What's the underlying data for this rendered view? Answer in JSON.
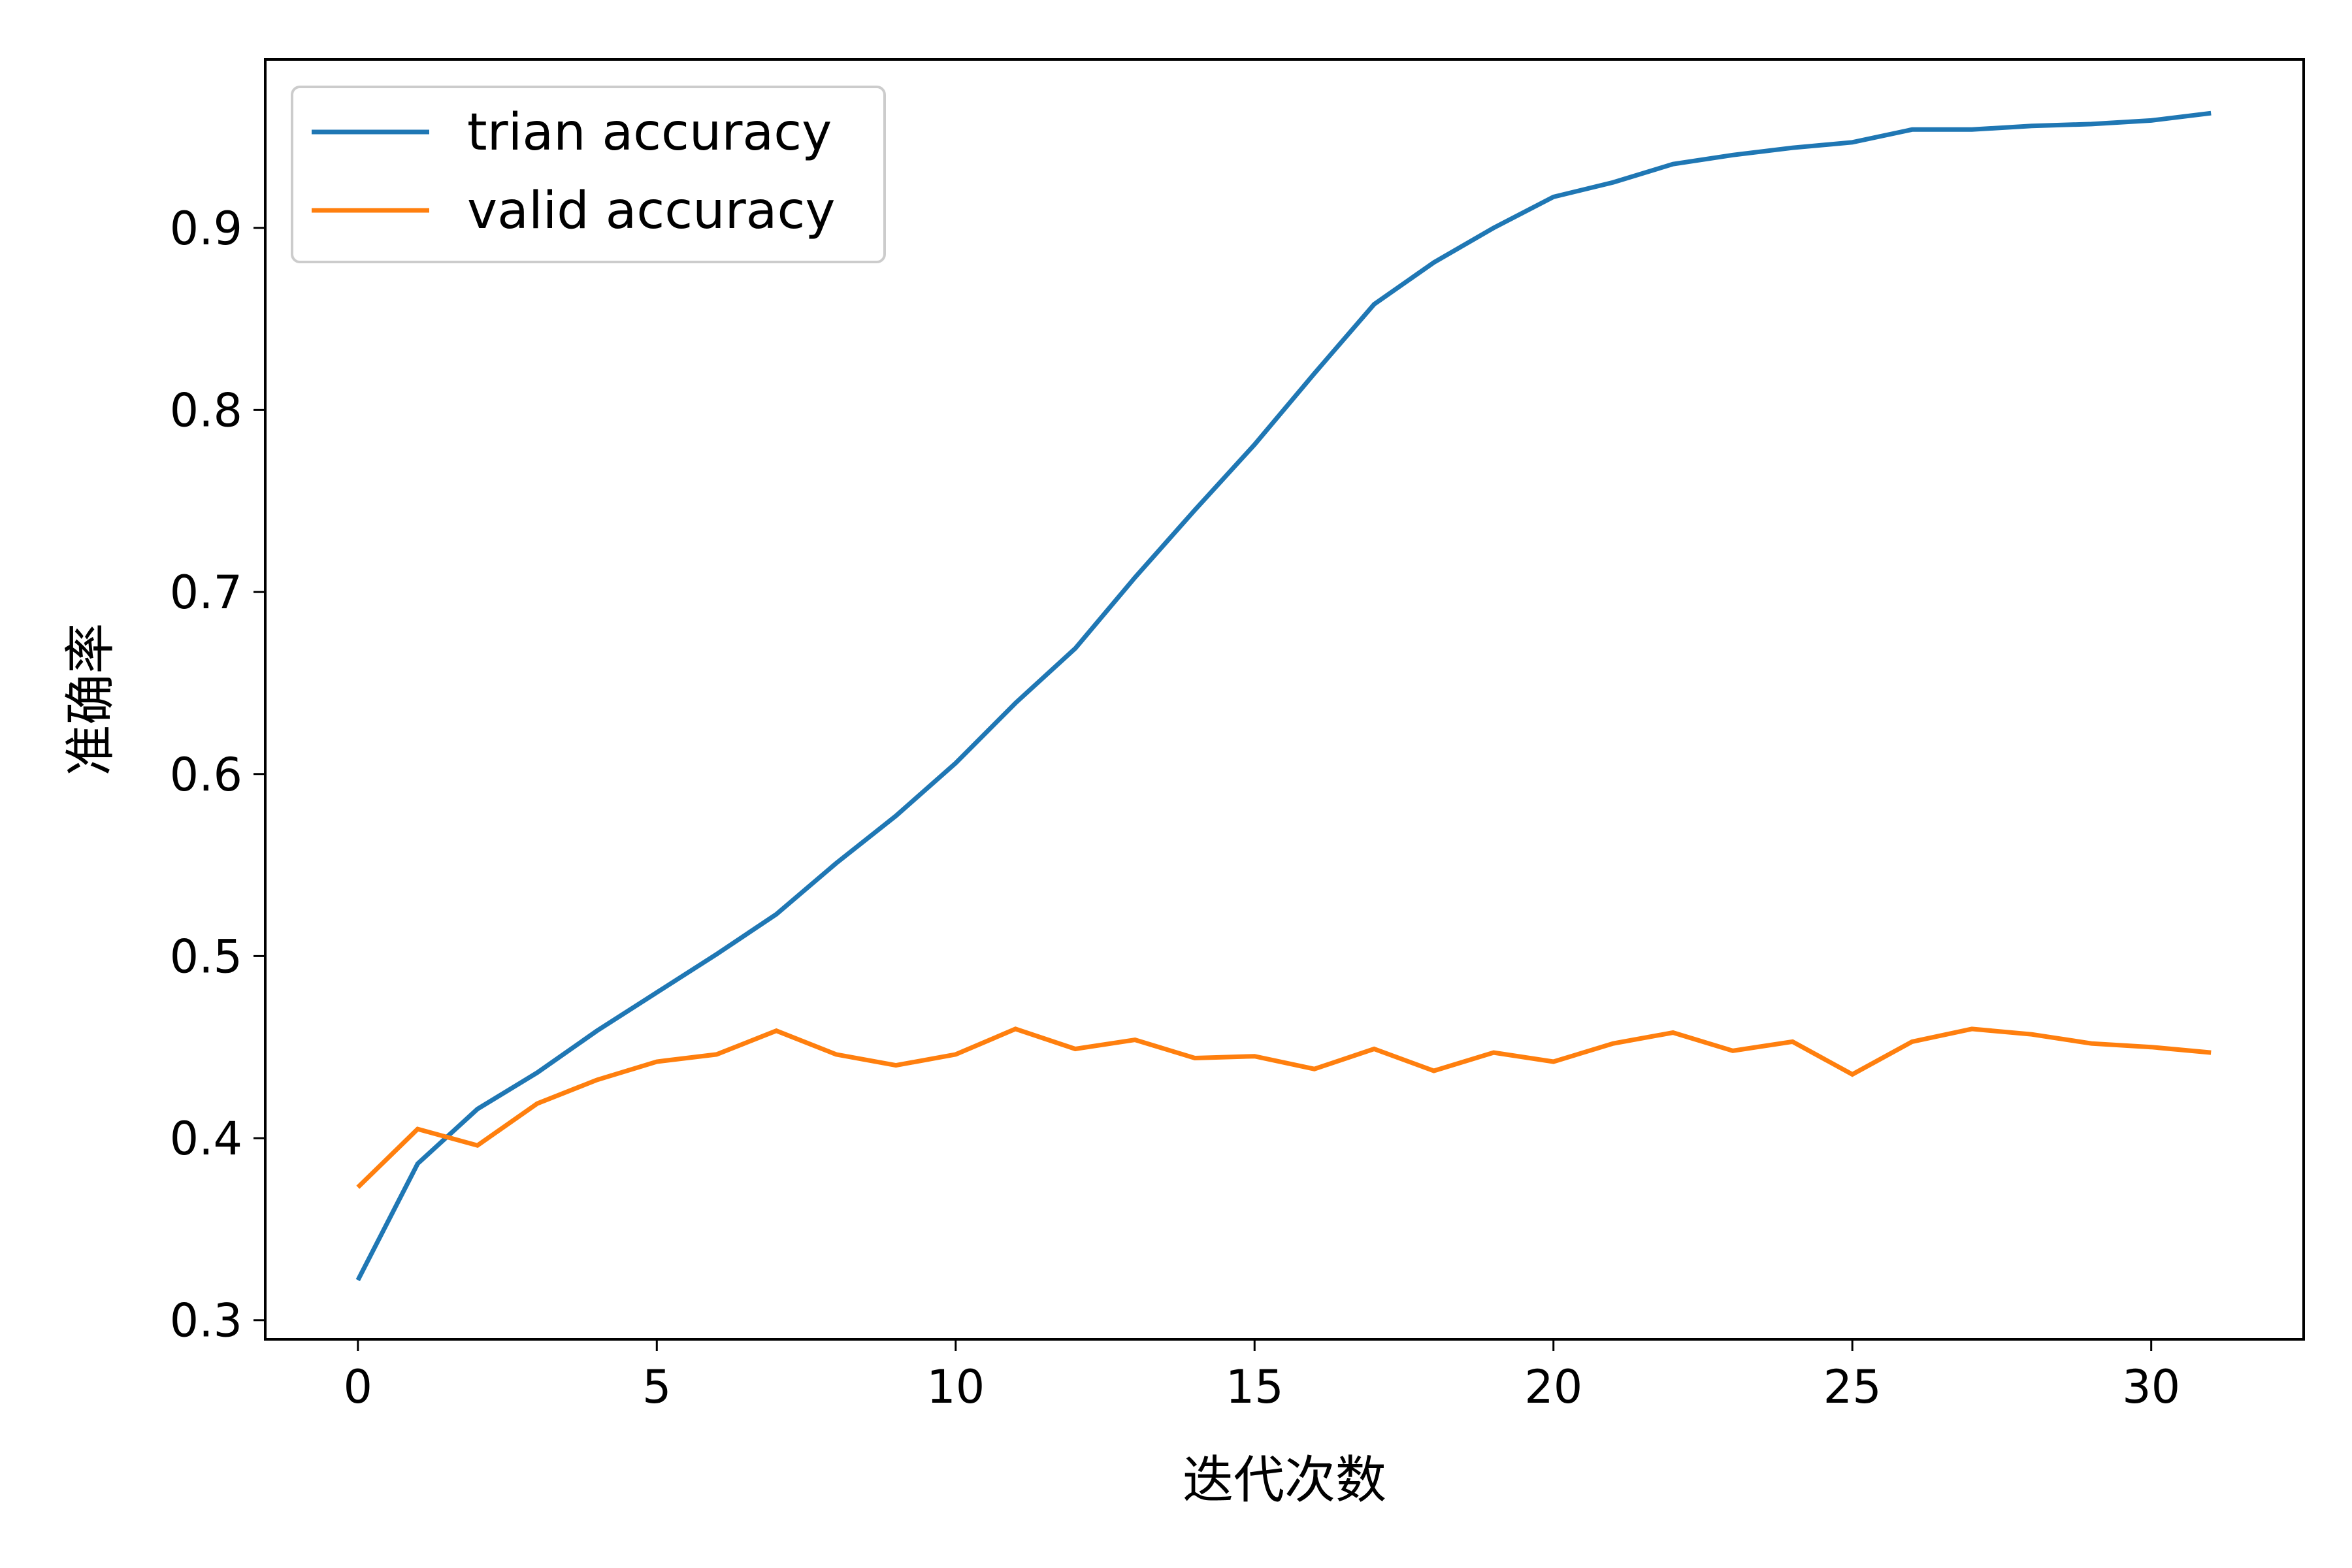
{
  "chart_data": {
    "type": "line",
    "title": "",
    "xlabel": "迭代次数",
    "ylabel": "准确率",
    "xlim": [
      -1.55,
      32.55
    ],
    "ylim": [
      0.2895,
      0.9925
    ],
    "xticks": [
      0,
      5,
      10,
      15,
      20,
      25,
      30
    ],
    "yticks": [
      0.3,
      0.4,
      0.5,
      0.6,
      0.7,
      0.8,
      0.9
    ],
    "ytick_labels": [
      "0.3",
      "0.4",
      "0.5",
      "0.6",
      "0.7",
      "0.8",
      "0.9"
    ],
    "grid": false,
    "legend_position": "top-left",
    "x": [
      0,
      1,
      2,
      3,
      4,
      5,
      6,
      7,
      8,
      9,
      10,
      11,
      12,
      13,
      14,
      15,
      16,
      17,
      18,
      19,
      20,
      21,
      22,
      23,
      24,
      25,
      26,
      27,
      28,
      29,
      30,
      31
    ],
    "series": [
      {
        "name": "trian accuracy",
        "color": "#1f77b4",
        "values": [
          0.322,
          0.386,
          0.416,
          0.436,
          0.459,
          0.48,
          0.501,
          0.523,
          0.551,
          0.577,
          0.606,
          0.639,
          0.669,
          0.708,
          0.745,
          0.781,
          0.82,
          0.858,
          0.881,
          0.9,
          0.917,
          0.925,
          0.935,
          0.94,
          0.944,
          0.947,
          0.954,
          0.954,
          0.956,
          0.957,
          0.959,
          0.963
        ]
      },
      {
        "name": "valid accuracy",
        "color": "#ff7f0e",
        "values": [
          0.373,
          0.405,
          0.396,
          0.419,
          0.432,
          0.442,
          0.446,
          0.459,
          0.446,
          0.44,
          0.446,
          0.46,
          0.449,
          0.454,
          0.444,
          0.445,
          0.438,
          0.449,
          0.437,
          0.447,
          0.442,
          0.452,
          0.458,
          0.448,
          0.453,
          0.435,
          0.453,
          0.46,
          0.457,
          0.452,
          0.45,
          0.447
        ]
      }
    ]
  }
}
